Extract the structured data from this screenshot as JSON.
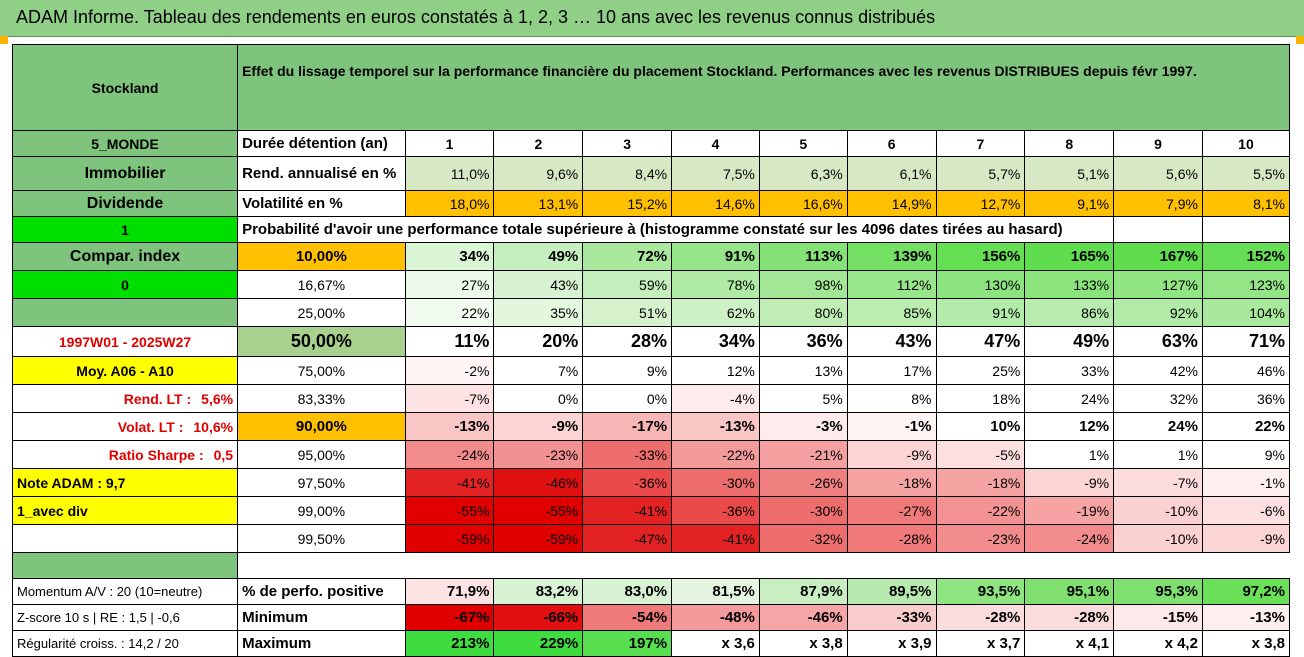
{
  "title": "ADAM Informe. Tableau des rendements en euros constatés à 1, 2, 3 … 10 ans avec les revenus connus distribués",
  "header": {
    "name": "Stockland",
    "description": "Effet du lissage temporel sur la performance financière du placement Stockland. Performances avec les revenus DISTRIBUES depuis févr 1997."
  },
  "side": {
    "code": "5_MONDE",
    "sector": "Immobilier",
    "type": "Dividende",
    "one": "1",
    "compar": "Compar. index",
    "zero": "0",
    "period": "1997W01 - 2025W27",
    "moy": "Moy. A06 - A10",
    "rend_lt": "Rend. LT :",
    "rend_lt_val": "5,6%",
    "volat_lt": "Volat. LT :",
    "volat_lt_val": "10,6%",
    "sharpe": "Ratio Sharpe :",
    "sharpe_val": "0,5",
    "note": "Note ADAM : 9,7",
    "div": "1_avec div",
    "momentum": "Momentum A/V : 20 (10=neutre)",
    "zscore": "Z-score 10 s | RE : 1,5 | -0,6",
    "regularite": "Régularité croiss. : 14,2 / 20"
  },
  "labels": {
    "duree": "Durée détention (an)",
    "rend": "Rend. annualisé en %",
    "vol": "Volatilité en %",
    "proba": "Probabilité d'avoir une performance totale supérieure à (histogramme constaté sur les 4096 dates tirées au hasard)",
    "pos": "% de perfo. positive",
    "min": "Minimum",
    "max": "Maximum"
  },
  "years": [
    "1",
    "2",
    "3",
    "4",
    "5",
    "6",
    "7",
    "8",
    "9",
    "10"
  ],
  "rend": [
    "11,0%",
    "9,6%",
    "8,4%",
    "7,5%",
    "6,3%",
    "6,1%",
    "5,7%",
    "5,1%",
    "5,6%",
    "5,5%"
  ],
  "vol": [
    "18,0%",
    "13,1%",
    "15,2%",
    "14,6%",
    "16,6%",
    "14,9%",
    "12,7%",
    "9,1%",
    "7,9%",
    "8,1%"
  ],
  "percentiles": [
    {
      "p": "10,00%",
      "v": [
        "34%",
        "49%",
        "72%",
        "91%",
        "113%",
        "139%",
        "156%",
        "165%",
        "167%",
        "152%"
      ]
    },
    {
      "p": "16,67%",
      "v": [
        "27%",
        "43%",
        "59%",
        "78%",
        "98%",
        "112%",
        "130%",
        "133%",
        "127%",
        "123%"
      ]
    },
    {
      "p": "25,00%",
      "v": [
        "22%",
        "35%",
        "51%",
        "62%",
        "80%",
        "85%",
        "91%",
        "86%",
        "92%",
        "104%"
      ]
    },
    {
      "p": "50,00%",
      "v": [
        "11%",
        "20%",
        "28%",
        "34%",
        "36%",
        "43%",
        "47%",
        "49%",
        "63%",
        "71%"
      ]
    },
    {
      "p": "75,00%",
      "v": [
        "-2%",
        "7%",
        "9%",
        "12%",
        "13%",
        "17%",
        "25%",
        "33%",
        "42%",
        "46%"
      ]
    },
    {
      "p": "83,33%",
      "v": [
        "-7%",
        "0%",
        "0%",
        "-4%",
        "5%",
        "8%",
        "18%",
        "24%",
        "32%",
        "36%"
      ]
    },
    {
      "p": "90,00%",
      "v": [
        "-13%",
        "-9%",
        "-17%",
        "-13%",
        "-3%",
        "-1%",
        "10%",
        "12%",
        "24%",
        "22%"
      ]
    },
    {
      "p": "95,00%",
      "v": [
        "-24%",
        "-23%",
        "-33%",
        "-22%",
        "-21%",
        "-9%",
        "-5%",
        "1%",
        "1%",
        "9%"
      ]
    },
    {
      "p": "97,50%",
      "v": [
        "-41%",
        "-46%",
        "-36%",
        "-30%",
        "-26%",
        "-18%",
        "-18%",
        "-9%",
        "-7%",
        "-1%"
      ]
    },
    {
      "p": "99,00%",
      "v": [
        "-55%",
        "-55%",
        "-41%",
        "-36%",
        "-30%",
        "-27%",
        "-22%",
        "-19%",
        "-10%",
        "-6%"
      ]
    },
    {
      "p": "99,50%",
      "v": [
        "-59%",
        "-59%",
        "-47%",
        "-41%",
        "-32%",
        "-28%",
        "-23%",
        "-24%",
        "-10%",
        "-9%"
      ]
    }
  ],
  "positive": [
    "71,9%",
    "83,2%",
    "83,0%",
    "81,5%",
    "87,9%",
    "89,5%",
    "93,5%",
    "95,1%",
    "95,3%",
    "97,2%"
  ],
  "minimum": [
    "-67%",
    "-66%",
    "-54%",
    "-48%",
    "-46%",
    "-33%",
    "-28%",
    "-28%",
    "-15%",
    "-13%"
  ],
  "maximum": [
    "213%",
    "229%",
    "197%",
    "x 3,6",
    "x 3,8",
    "x 3,9",
    "x 3,7",
    "x 4,1",
    "x 4,2",
    "x 3,8"
  ],
  "colors": {
    "positive": [
      "#fbe3e3",
      "#d8f2d4",
      "#d8f2d4",
      "#e6f5e2",
      "#c9eec2",
      "#b8eaaf",
      "#8ee47f",
      "#7fe06f",
      "#7fe06f",
      "#6adf58"
    ],
    "minimum": [
      "#e00000",
      "#e21010",
      "#ef7a7a",
      "#f49a9a",
      "#f5a5a5",
      "#f9cccc",
      "#fbdcdc",
      "#fbdcdc",
      "#fde9e9",
      "#feefef"
    ],
    "maximum": [
      "#3fdc3f",
      "#3fdc3f",
      "#57df50",
      "#ffffff",
      "#ffffff",
      "#ffffff",
      "#ffffff",
      "#ffffff",
      "#ffffff",
      "#ffffff"
    ],
    "percentiles": [
      [
        "#d9f5d4",
        "#c6efbf",
        "#a9e89d",
        "#97e58a",
        "#84e276",
        "#73df63",
        "#64de52",
        "#60dd4e",
        "#5fdd4c",
        "#66de55"
      ],
      [
        "#ebf9e8",
        "#d8f3d2",
        "#c4efbc",
        "#b0eba6",
        "#a1e795",
        "#98e68b",
        "#8ce47e",
        "#8ae47b",
        "#91e583",
        "#93e585"
      ],
      [
        "#f2fbef",
        "#e3f7de",
        "#d5f2cd",
        "#cdf0c4",
        "#bfedb3",
        "#bbedaf",
        "#b3ebaa",
        "#b8ecae",
        "#b2eba7",
        "#a9e99c"
      ],
      [
        "#ffffff",
        "#ffffff",
        "#ffffff",
        "#ffffff",
        "#ffffff",
        "#ffffff",
        "#ffffff",
        "#ffffff",
        "#ffffff",
        "#ffffff"
      ],
      [
        "#fff4f4",
        "#ffffff",
        "#ffffff",
        "#ffffff",
        "#ffffff",
        "#ffffff",
        "#ffffff",
        "#ffffff",
        "#ffffff",
        "#ffffff"
      ],
      [
        "#fde3e3",
        "#ffffff",
        "#ffffff",
        "#feecec",
        "#ffffff",
        "#ffffff",
        "#ffffff",
        "#ffffff",
        "#ffffff",
        "#ffffff"
      ],
      [
        "#f9c5c5",
        "#fbd4d4",
        "#f7b5b5",
        "#f9c5c5",
        "#feecec",
        "#fff4f4",
        "#ffffff",
        "#ffffff",
        "#ffffff",
        "#ffffff"
      ],
      [
        "#f28c8c",
        "#f29191",
        "#ee6d6d",
        "#f39a9a",
        "#f4a0a0",
        "#fbd4d4",
        "#fce0e0",
        "#ffffff",
        "#ffffff",
        "#ffffff"
      ],
      [
        "#e32323",
        "#e01010",
        "#ea4a4a",
        "#ee6d6d",
        "#f18181",
        "#f5a3a3",
        "#f5a3a3",
        "#fbd4d4",
        "#fcdcdc",
        "#fff0f0"
      ],
      [
        "#e00000",
        "#e00000",
        "#e32323",
        "#ea4a4a",
        "#ee6d6d",
        "#f07a7a",
        "#f39292",
        "#f5a3a3",
        "#fbd0d0",
        "#fce0e0"
      ],
      [
        "#e00000",
        "#e00000",
        "#e32323",
        "#e32323",
        "#ee6d6d",
        "#f07a7a",
        "#f28c8c",
        "#f28c8c",
        "#fbd0d0",
        "#fbd4d4"
      ]
    ]
  }
}
